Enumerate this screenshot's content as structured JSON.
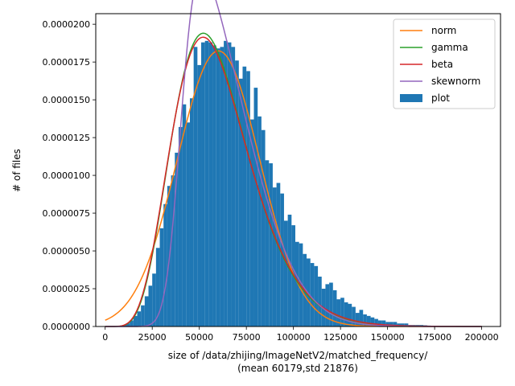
{
  "chart_data": {
    "type": "bar",
    "title": "",
    "xlabel": "size of /data/zhijing/ImageNetV2/matched_frequency/",
    "xlabel_line2": "(mean 60179,std 21876)",
    "ylabel": "# of files",
    "xlim": [
      -5000,
      210000
    ],
    "ylim": [
      0,
      2.07e-05
    ],
    "x_ticks": [
      0,
      25000,
      50000,
      75000,
      100000,
      125000,
      150000,
      175000,
      200000
    ],
    "x_tick_labels": [
      "0",
      "25000",
      "50000",
      "75000",
      "100000",
      "125000",
      "150000",
      "175000",
      "200000"
    ],
    "y_ticks": [
      0,
      2.5e-06,
      5e-06,
      7.5e-06,
      1e-05,
      1.25e-05,
      1.5e-05,
      1.75e-05,
      2e-05
    ],
    "y_tick_labels": [
      "0.0000000",
      "0.0000025",
      "0.0000050",
      "0.0000075",
      "0.0000100",
      "0.0000125",
      "0.0000150",
      "0.0000175",
      "0.0000200"
    ],
    "histogram": {
      "name": "plot",
      "color": "#1f77b4",
      "bin_start": 5000,
      "bin_width": 2000,
      "values": [
        2e-08,
        5e-08,
        8e-08,
        2e-07,
        4e-07,
        7e-07,
        1e-06,
        1.4e-06,
        2e-06,
        2.7e-06,
        3.5e-06,
        5.2e-06,
        6.5e-06,
        8.1e-06,
        9.3e-06,
        1e-05,
        1.15e-05,
        1.32e-05,
        1.47e-05,
        1.35e-05,
        1.51e-05,
        1.85e-05,
        1.73e-05,
        1.88e-05,
        1.89e-05,
        1.88e-05,
        1.86e-05,
        1.84e-05,
        1.85e-05,
        1.89e-05,
        1.88e-05,
        1.85e-05,
        1.76e-05,
        1.64e-05,
        1.72e-05,
        1.69e-05,
        1.37e-05,
        1.58e-05,
        1.39e-05,
        1.3e-05,
        1.1e-05,
        1.08e-05,
        9.2e-06,
        9.5e-06,
        8.8e-06,
        7e-06,
        7.4e-06,
        6.7e-06,
        5.6e-06,
        5.5e-06,
        4.8e-06,
        4.5e-06,
        4.2e-06,
        4e-06,
        3.3e-06,
        2.5e-06,
        2.8e-06,
        2.9e-06,
        2.4e-06,
        1.8e-06,
        1.9e-06,
        1.6e-06,
        1.5e-06,
        1.3e-06,
        9e-07,
        1.1e-06,
        8e-07,
        7e-07,
        6e-07,
        5e-07,
        4e-07,
        4e-07,
        3e-07,
        3e-07,
        3e-07,
        2e-07,
        2e-07,
        2e-07,
        1e-07,
        1e-07,
        1e-07,
        1e-07,
        8e-08,
        6e-08,
        5e-08,
        4e-08,
        3e-08,
        3e-08,
        2e-08,
        2e-08,
        2e-08,
        1e-08,
        1e-08,
        1e-08,
        1e-08,
        1e-08,
        1e-08,
        1e-08
      ]
    },
    "series": [
      {
        "name": "norm",
        "color": "#ff7f0e",
        "dist": "norm",
        "mean": 60179,
        "std": 21876
      },
      {
        "name": "gamma",
        "color": "#2ca02c",
        "dist": "gamma",
        "shape": 7.6,
        "scale": 7900
      },
      {
        "name": "beta",
        "color": "#d62728",
        "dist": "gamma",
        "shape": 7.4,
        "scale": 8130
      },
      {
        "name": "skewnorm",
        "color": "#9467bd",
        "dist": "skewnorm",
        "loc": 40000,
        "scale": 30500,
        "alpha": 4.8
      }
    ],
    "legend": {
      "position": "top-right",
      "entries": [
        "norm",
        "gamma",
        "beta",
        "skewnorm",
        "plot"
      ]
    },
    "grid": false
  }
}
